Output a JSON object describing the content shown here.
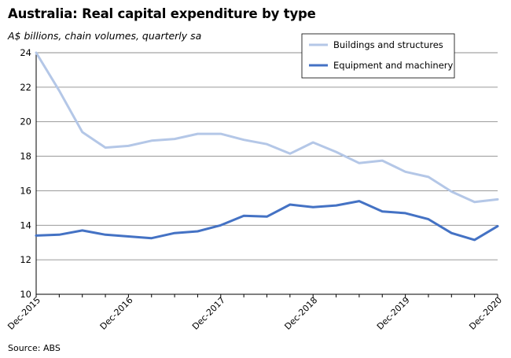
{
  "chart_data": {
    "type": "line",
    "title": "Australia: Real capital expenditure by type",
    "subtitle": "A$ billions, chain volumes, quarterly sa",
    "source": "Source: ABS",
    "xlabel": "",
    "ylabel": "",
    "ylim": [
      10,
      24
    ],
    "yticks": [
      10,
      12,
      14,
      16,
      18,
      20,
      22,
      24
    ],
    "grid": true,
    "legend_position": "top-right",
    "x": [
      "Dec-2015",
      "Mar-2016",
      "Jun-2016",
      "Sep-2016",
      "Dec-2016",
      "Mar-2017",
      "Jun-2017",
      "Sep-2017",
      "Dec-2017",
      "Mar-2018",
      "Jun-2018",
      "Sep-2018",
      "Dec-2018",
      "Mar-2019",
      "Jun-2019",
      "Sep-2019",
      "Dec-2019",
      "Mar-2020",
      "Jun-2020",
      "Sep-2020",
      "Dec-2020"
    ],
    "xtick_labels": [
      "Dec-2015",
      "Dec-2016",
      "Dec-2017",
      "Dec-2018",
      "Dec-2019",
      "Dec-2020"
    ],
    "xtick_indices": [
      0,
      4,
      8,
      12,
      16,
      20
    ],
    "series": [
      {
        "name": "Buildings and structures",
        "color": "#b4c7e7",
        "values": [
          24.0,
          21.8,
          19.4,
          18.5,
          18.6,
          18.9,
          19.0,
          19.3,
          19.3,
          18.95,
          18.7,
          18.15,
          18.8,
          18.25,
          17.6,
          17.75,
          17.1,
          16.8,
          15.95,
          15.35,
          15.5
        ]
      },
      {
        "name": "Equipment and machinery",
        "color": "#4472c4",
        "values": [
          13.4,
          13.45,
          13.7,
          13.45,
          13.35,
          13.25,
          13.55,
          13.65,
          14.0,
          14.55,
          14.5,
          15.2,
          15.05,
          15.15,
          15.4,
          14.8,
          14.7,
          14.35,
          13.55,
          13.15,
          13.95
        ]
      }
    ]
  }
}
